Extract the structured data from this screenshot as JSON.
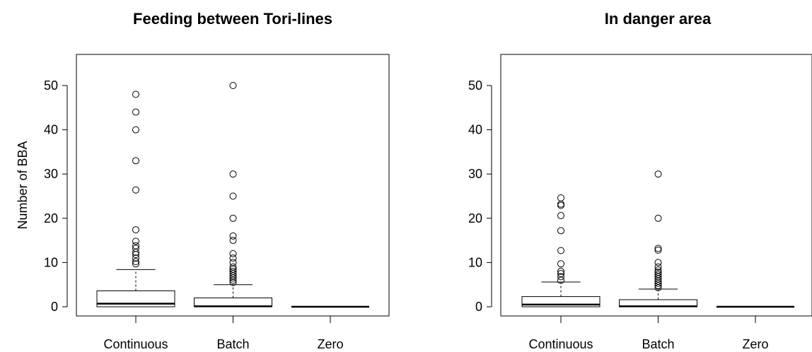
{
  "chart_data": [
    {
      "type": "box",
      "title": "Feeding between Tori-lines",
      "ylabel": "Number of BBA",
      "ylim": [
        -2,
        57
      ],
      "yticks": [
        0,
        10,
        20,
        30,
        40,
        50
      ],
      "categories": [
        "Continuous",
        "Batch",
        "Zero"
      ],
      "boxes": [
        {
          "min": 0,
          "q1": 0,
          "median": 0.7,
          "q3": 3.6,
          "whisker_high": 8.4,
          "outliers": [
            9.7,
            10.2,
            11.0,
            11.8,
            12.3,
            13.2,
            13.8,
            14.8,
            17.4,
            26.4,
            33.0,
            40.0,
            44.0,
            48.0
          ]
        },
        {
          "min": 0,
          "q1": 0,
          "median": 0.1,
          "q3": 2.0,
          "whisker_high": 5.0,
          "outliers": [
            5.5,
            6.0,
            6.5,
            7.0,
            7.5,
            8.0,
            8.5,
            9.0,
            10.0,
            11.0,
            12.0,
            15.0,
            16.0,
            20.0,
            25.0,
            30.0,
            50.0
          ]
        },
        {
          "min": 0,
          "q1": 0,
          "median": 0,
          "q3": 0,
          "whisker_high": 0,
          "outliers": []
        }
      ]
    },
    {
      "type": "box",
      "title": "In danger area",
      "ylabel": "",
      "ylim": [
        -2,
        57
      ],
      "yticks": [
        0,
        10,
        20,
        30,
        40,
        50
      ],
      "categories": [
        "Continuous",
        "Batch",
        "Zero"
      ],
      "boxes": [
        {
          "min": 0,
          "q1": 0,
          "median": 0.5,
          "q3": 2.3,
          "whisker_high": 5.6,
          "outliers": [
            6.0,
            6.8,
            7.5,
            8.0,
            9.7,
            12.7,
            17.2,
            20.6,
            22.9,
            23.2,
            24.6
          ]
        },
        {
          "min": 0,
          "q1": 0,
          "median": 0.1,
          "q3": 1.6,
          "whisker_high": 4.0,
          "outliers": [
            4.3,
            4.8,
            5.3,
            5.8,
            6.3,
            6.8,
            7.3,
            7.8,
            8.3,
            9.0,
            10.0,
            12.8,
            13.2,
            20.0,
            30.0
          ]
        },
        {
          "min": 0,
          "q1": 0,
          "median": 0,
          "q3": 0,
          "whisker_high": 0,
          "outliers": []
        }
      ]
    }
  ]
}
